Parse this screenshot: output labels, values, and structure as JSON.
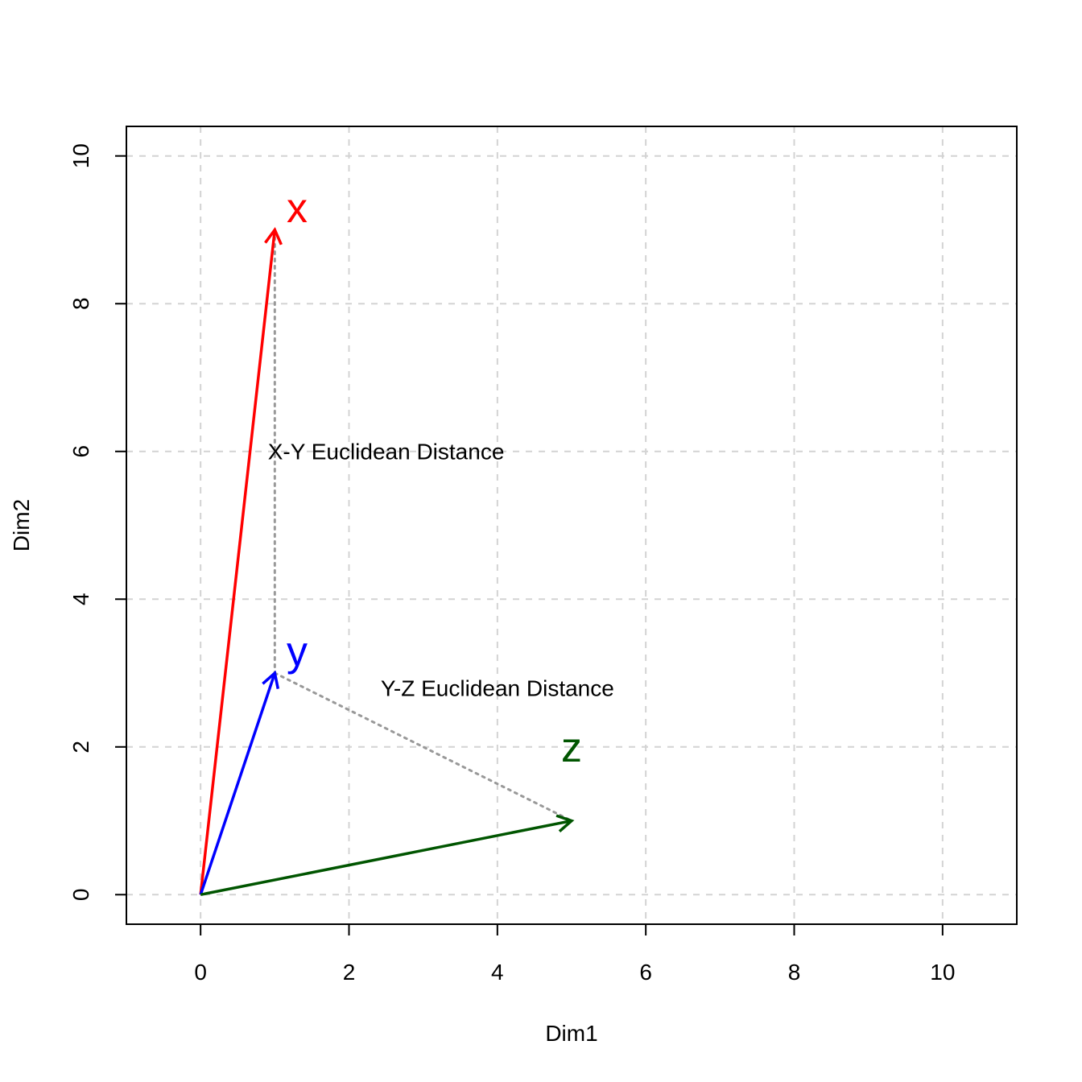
{
  "chart_data": {
    "type": "line",
    "title": "",
    "xlabel": "Dim1",
    "ylabel": "Dim2",
    "xlim": [
      -1,
      11
    ],
    "ylim": [
      -0.4,
      10.4
    ],
    "xticks": [
      0,
      2,
      4,
      6,
      8,
      10
    ],
    "yticks": [
      0,
      2,
      4,
      6,
      8,
      10
    ],
    "xtick_labels": [
      "0",
      "2",
      "4",
      "6",
      "8",
      "10"
    ],
    "ytick_labels": [
      "0",
      "2",
      "4",
      "6",
      "8",
      "10"
    ],
    "grid": true,
    "vectors": [
      {
        "name": "x",
        "from": [
          0,
          0
        ],
        "to": [
          1,
          9
        ],
        "color": "#ff0000",
        "label_at": [
          1.3,
          9.3
        ]
      },
      {
        "name": "y",
        "from": [
          0,
          0
        ],
        "to": [
          1,
          3
        ],
        "color": "#0000ff",
        "label_at": [
          1.3,
          3.3
        ]
      },
      {
        "name": "z",
        "from": [
          0,
          0
        ],
        "to": [
          5,
          1
        ],
        "color": "#005500",
        "label_at": [
          5,
          2
        ]
      }
    ],
    "distance_lines": [
      {
        "from": [
          1,
          9
        ],
        "to": [
          1,
          3
        ],
        "color": "#999999"
      },
      {
        "from": [
          1,
          3
        ],
        "to": [
          5,
          1
        ],
        "color": "#999999"
      }
    ],
    "annotations": [
      {
        "text": "X-Y Euclidean Distance",
        "at": [
          2.5,
          6
        ]
      },
      {
        "text": "Y-Z Euclidean Distance",
        "at": [
          4,
          2.8
        ]
      }
    ]
  }
}
